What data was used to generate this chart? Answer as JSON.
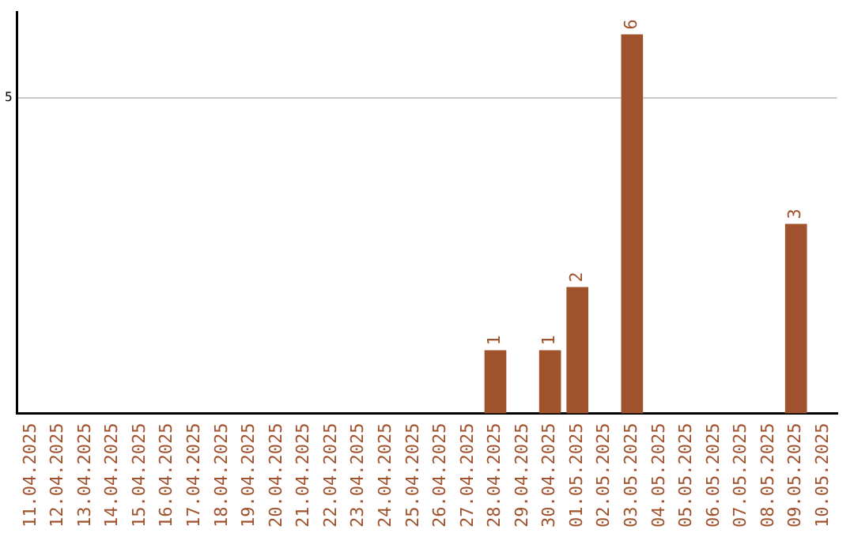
{
  "chart_data": {
    "type": "bar",
    "categories": [
      "11.04.2025",
      "12.04.2025",
      "13.04.2025",
      "14.04.2025",
      "15.04.2025",
      "16.04.2025",
      "17.04.2025",
      "18.04.2025",
      "19.04.2025",
      "20.04.2025",
      "21.04.2025",
      "22.04.2025",
      "23.04.2025",
      "24.04.2025",
      "25.04.2025",
      "26.04.2025",
      "27.04.2025",
      "28.04.2025",
      "29.04.2025",
      "30.04.2025",
      "01.05.2025",
      "02.05.2025",
      "03.05.2025",
      "04.05.2025",
      "05.05.2025",
      "06.05.2025",
      "07.05.2025",
      "08.05.2025",
      "09.05.2025",
      "10.05.2025"
    ],
    "values": [
      null,
      null,
      null,
      null,
      null,
      null,
      null,
      null,
      null,
      null,
      null,
      null,
      null,
      null,
      null,
      null,
      null,
      1,
      null,
      1,
      2,
      null,
      6,
      null,
      null,
      null,
      null,
      null,
      3,
      null
    ],
    "data_labels": true,
    "color": "#a0522d",
    "ylim": [
      0,
      6.35
    ],
    "yticks": [
      5
    ],
    "grid": "y"
  }
}
